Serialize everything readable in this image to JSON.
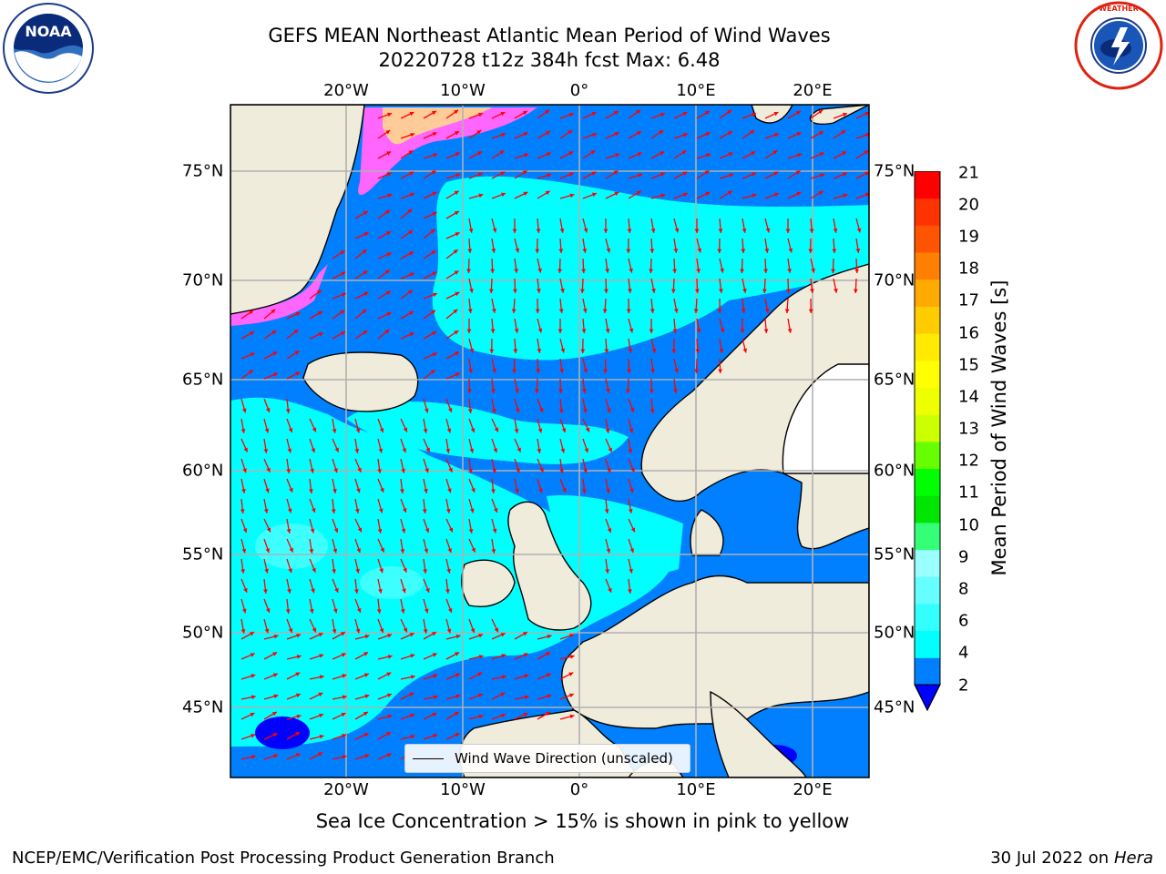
{
  "header": {
    "title_line1": "GEFS MEAN Northeast Atlantic Mean Period of Wind Waves",
    "title_line2": "20220728 t12z 384h fcst   Max: 6.48"
  },
  "logos": {
    "left": "NOAA",
    "left_ring_text": "NATIONAL OCEANIC AND ATMOSPHERIC ADMINISTRATION · U.S. DEPARTMENT OF COMMERCE",
    "right_ring_text": "NATIONAL WEATHER SERVICE"
  },
  "map": {
    "lon_labels": [
      "20°W",
      "10°W",
      "0°",
      "10°E",
      "20°E"
    ],
    "lat_labels": [
      "75°N",
      "70°N",
      "65°N",
      "60°N",
      "55°N",
      "50°N",
      "45°N"
    ],
    "legend_label": "Wind Wave Direction (unscaled)",
    "colors": {
      "land": "#efecdc",
      "ice_land": "#ffffff",
      "arrow": "#ff0000",
      "grid": "#b0b0b0"
    }
  },
  "colorbar": {
    "label": "Mean Period of Wind Waves [s]",
    "ticks": [
      "21",
      "20",
      "19",
      "18",
      "17",
      "16",
      "15",
      "14",
      "13",
      "12",
      "11",
      "10",
      "9",
      "8",
      "6",
      "4",
      "2"
    ],
    "colors": [
      "#0000ff",
      "#0080ff",
      "#00ffff",
      "#33ffff",
      "#66ffff",
      "#99ffff",
      "#33ff77",
      "#00e600",
      "#00ff00",
      "#66ff00",
      "#ccff00",
      "#eeff00",
      "#ffff00",
      "#ffea00",
      "#ffcc00",
      "#ffaa00",
      "#ff8000",
      "#ff5500",
      "#ff3300",
      "#ff0000"
    ]
  },
  "notes": {
    "ice": "Sea Ice Concentration > 15% is shown in pink to yellow"
  },
  "footer": {
    "left": "NCEP/EMC/Verification Post Processing Product Generation Branch",
    "date": "30 Jul 2022 on ",
    "machine": "Hera"
  }
}
